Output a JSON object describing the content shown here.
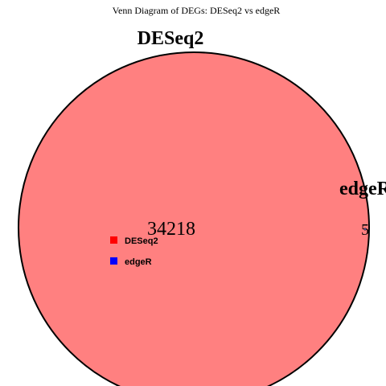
{
  "title": "Venn Diagram of DEGs: DESeq2 vs edgeR",
  "sets": [
    {
      "name": "DESeq2",
      "color": "#ff8080",
      "border": "#000000"
    },
    {
      "name": "edgeR",
      "color": "#8080ff",
      "border": "#000000"
    }
  ],
  "regions": {
    "deseq2_only": "34218",
    "edger_only": "5"
  },
  "legend": {
    "items": [
      {
        "label": "DESeq2",
        "color": "#ff0000"
      },
      {
        "label": "edgeR",
        "color": "#0000ff"
      }
    ]
  }
}
